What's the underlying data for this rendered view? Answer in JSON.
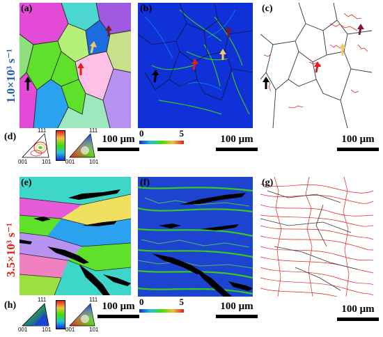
{
  "panel_labels": {
    "a": "(a)",
    "b": "(b)",
    "c": "(c)",
    "d": "(d)",
    "e": "(e)",
    "f": "(f)",
    "g": "(g)",
    "h": "(h)"
  },
  "row_labels": {
    "top": "1.0×10³ s⁻¹",
    "bottom": "3.5×10³ s⁻¹",
    "top_color": "#1f5fa8",
    "bottom_color": "#e0201c"
  },
  "scale_bar_text": "100 μm",
  "colorbar": {
    "min": "0",
    "max": "5"
  },
  "ipf_corners": {
    "top": "111",
    "left": "001",
    "right": "101"
  },
  "colors": {
    "arrow_black": "#000000",
    "arrow_red": "#e0201c",
    "arrow_yellow": "#f2c86a",
    "arrow_darkred": "#7a1830",
    "kam_bg": "#1030d8",
    "kam_high": "#40e000",
    "boundary_red": "#e0201c"
  }
}
